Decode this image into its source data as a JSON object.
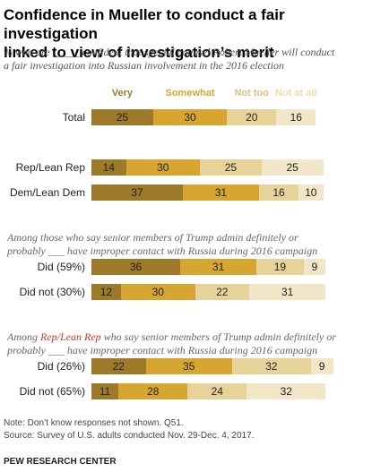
{
  "title_line1": "Confidence in Mueller to conduct a fair investigation",
  "title_line2": "linked to view of investigation’s merit",
  "subtitle_line1": "% who are _____ confident that special counsel Robert Mueller will conduct",
  "subtitle_line2": "a fair investigation into Russian involvement in the 2016 election",
  "section_notes": {
    "s2_line1": "Among those who say senior members of Trump admin definitely or",
    "s2_line2": "probably ___ have improper contact with Russia during 2016 campaign",
    "s3_prefix": "Among ",
    "s3_highlight": "Rep/Lean Rep",
    "s3_suffix": " who say senior members of Trump admin definitely or",
    "s3_line2": "probably ___ have improper contact with Russia during 2016 campaign"
  },
  "colors": {
    "very": "#9c7a2a",
    "somewhat": "#d6a630",
    "not_too": "#e7d39a",
    "not_at_all": "#f1e6c7",
    "highlight": "#c0392b"
  },
  "chart_data": {
    "type": "bar",
    "orientation": "horizontal-stacked",
    "legend": [
      "Very",
      "Somewhat",
      "Not too",
      "Not at all"
    ],
    "legend_placement": "top",
    "categories": [
      "Total",
      "Rep/Lean Rep",
      "Dem/Lean Dem",
      "Did (59%)",
      "Did not (30%)",
      "Did (26%)",
      "Did not (65%)"
    ],
    "series": [
      {
        "name": "Very",
        "values": [
          25,
          14,
          37,
          36,
          12,
          22,
          11
        ]
      },
      {
        "name": "Somewhat",
        "values": [
          30,
          30,
          31,
          31,
          30,
          35,
          28
        ]
      },
      {
        "name": "Not too",
        "values": [
          20,
          25,
          16,
          19,
          22,
          32,
          24
        ]
      },
      {
        "name": "Not at all",
        "values": [
          16,
          25,
          10,
          9,
          31,
          9,
          32
        ]
      }
    ]
  },
  "footer": {
    "note": "Note: Don’t know responses not shown. Q51.",
    "source": "Source: Survey of U.S. adults conducted Nov. 29-Dec. 4, 2017.",
    "org": "PEW RESEARCH CENTER"
  }
}
